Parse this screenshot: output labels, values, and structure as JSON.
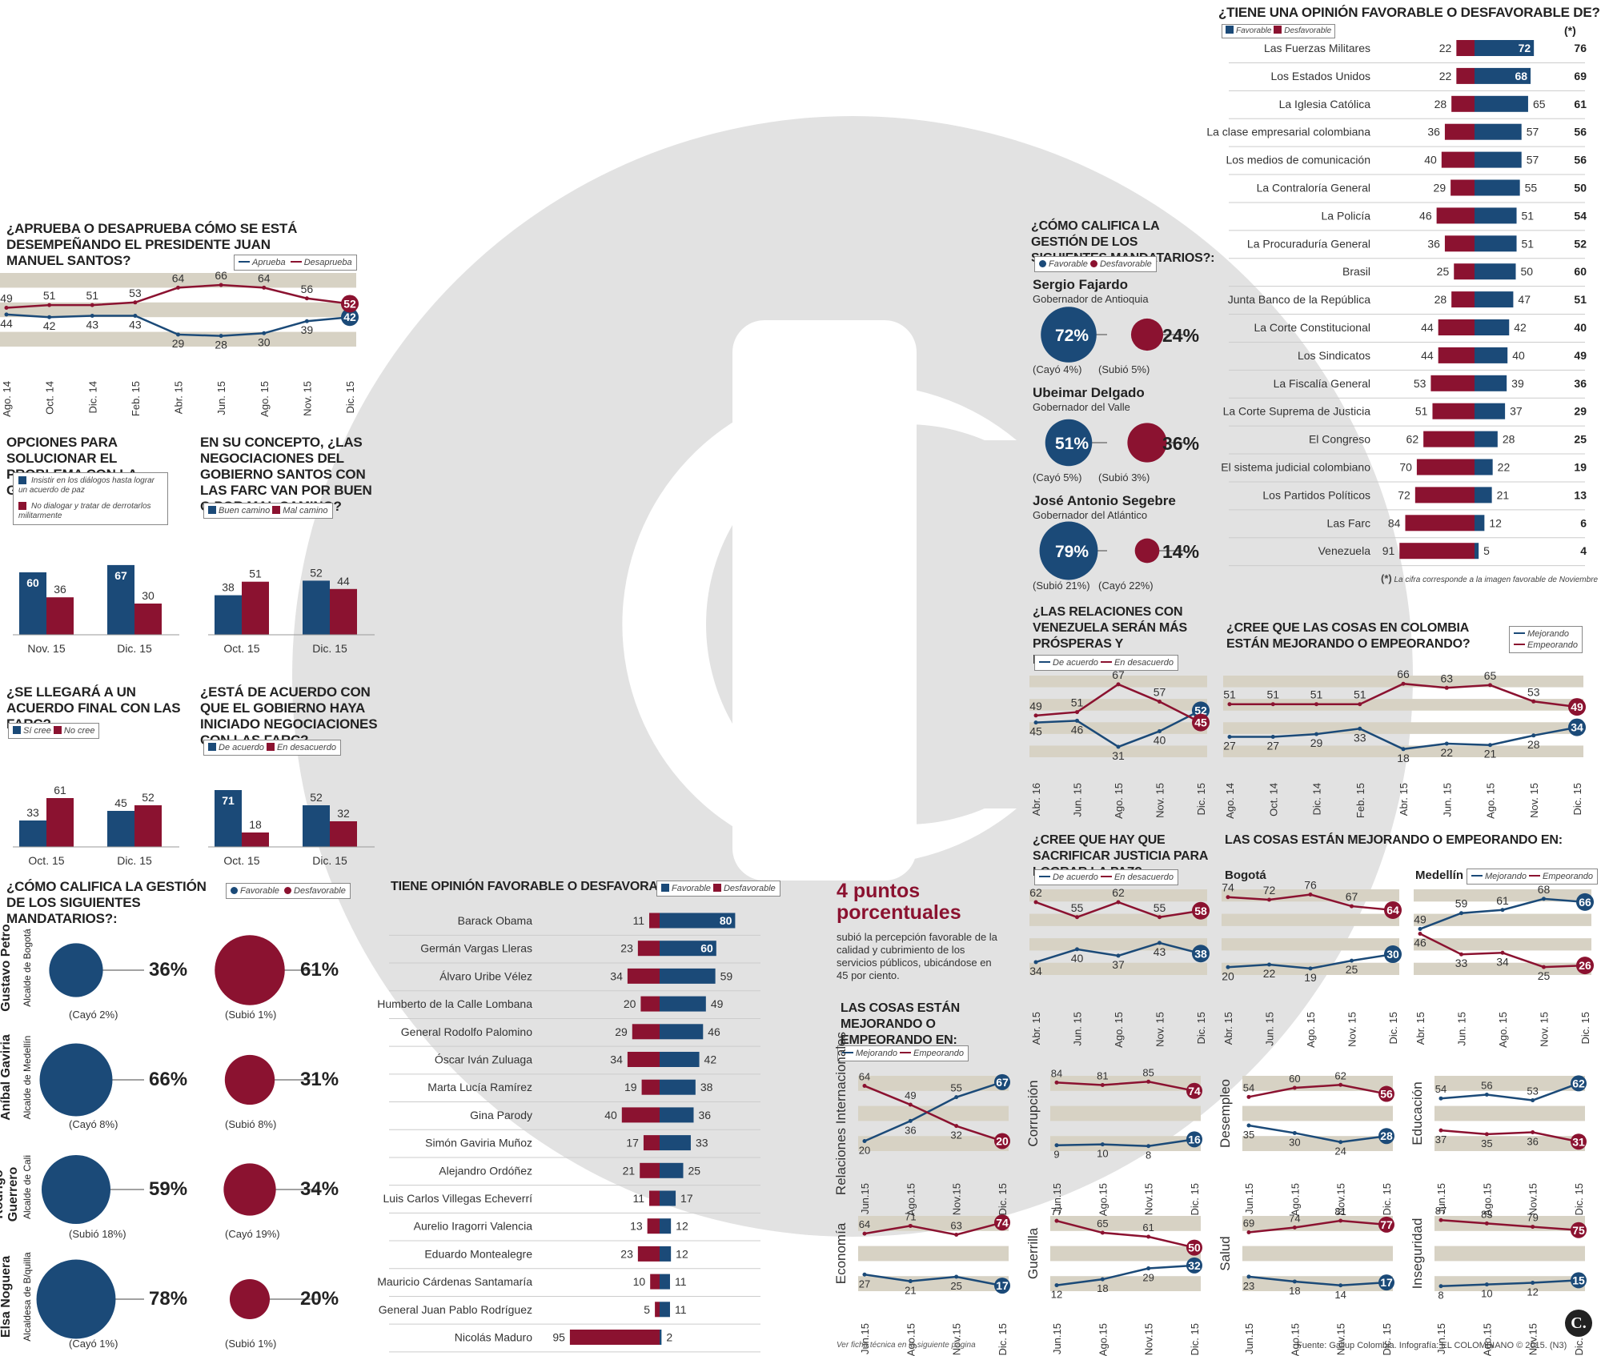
{
  "colors": {
    "blue": "#1b4a78",
    "red": "#8b1230",
    "band": "#d7d2c4",
    "watermark": "#e2e2e2"
  },
  "source": "Fuente: Gallup Colombia. Infografía: EL COLOMBIANO © 2015. (N3)",
  "footnote": "Ver ficha técnica en la siguiente página",
  "logo_letter": "C.",
  "santos": {
    "title": "¿APRUEBA O DESAPRUEBA CÓMO SE ESTÁ DESEMPEÑANDO EL PRESIDENTE JUAN MANUEL SANTOS?",
    "legend": [
      "Aprueba",
      "Desaprueba"
    ]
  },
  "guerrilla": {
    "title": "OPCIONES PARA SOLUCIONAR EL PROBLEMA CON LA GUERRILLA",
    "legend": [
      "Insistir en los diálogos hasta lograr un acuerdo de paz",
      "No dialogar y tratar de derrotarlos militarmente"
    ]
  },
  "negociaciones": {
    "title": "EN SU CONCEPTO, ¿LAS NEGOCIACIONES DEL GOBIERNO SANTOS CON LAS FARC VAN POR BUEN O POR MAL CAMINO?",
    "legend": [
      "Buen camino",
      "Mal camino"
    ]
  },
  "acuerdo": {
    "title": "¿SE LLEGARÁ A UN ACUERDO FINAL CON LAS FARC?",
    "legend": [
      "Sí cree",
      "No cree"
    ]
  },
  "iniciado": {
    "title": "¿ESTÁ DE ACUERDO CON QUE EL GOBIERNO HAYA INICIADO NEGOCIACIONES CON LAS FARC?",
    "legend": [
      "De acuerdo",
      "En desacuerdo"
    ]
  },
  "alcaldes": {
    "title": "¿CÓMO CALIFICA LA GESTIÓN DE LOS SIGUIENTES MANDATARIOS?:",
    "legend": [
      "Favorable",
      "Desfavorable"
    ],
    "people": [
      {
        "name": "Gustavo Petro",
        "role": "Alcalde de Bogotá",
        "fav": "36%",
        "des": "61%",
        "fav_note": "(Cayó 2%)",
        "des_note": "(Subió 1%)"
      },
      {
        "name": "Aníbal Gaviria",
        "role": "Alcalde de Medellín",
        "fav": "66%",
        "des": "31%",
        "fav_note": "(Cayó 8%)",
        "des_note": "(Subió 8%)"
      },
      {
        "name": "Rodrigo Guerrero",
        "role": "Alcalde de Cali",
        "fav": "59%",
        "des": "34%",
        "fav_note": "(Subió 18%)",
        "des_note": "(Cayó 19%)"
      },
      {
        "name": "Elsa Noguera",
        "role": "Alcaldesa de B/quilla",
        "fav": "78%",
        "des": "20%",
        "fav_note": "(Cayó 1%)",
        "des_note": "(Subió 1%)"
      }
    ]
  },
  "personajes": {
    "title": "TIENE OPINIÓN FAVORABLE O DESFAVORABLE DE:",
    "legend": [
      "Favorable",
      "Desfavorable"
    ]
  },
  "puntos": {
    "big": "4 puntos porcentuales",
    "text": "subió la percepción favorable de la calidad y cubrimiento de los servicios públicos, ubicándose en 45 por ciento."
  },
  "mejorando_small": {
    "title": "LAS COSAS ESTÁN MEJORANDO O EMPEORANDO EN:",
    "legend": [
      "Mejorando",
      "Empeorando"
    ]
  },
  "gobernadores": {
    "title": "¿CÓMO CALIFICA LA GESTIÓN DE LOS SIGUIENTES MANDATARIOS?:",
    "legend": [
      "Favorable",
      "Desfavorable"
    ],
    "people": [
      {
        "name": "Sergio Fajardo",
        "role": "Gobernador de Antioquia",
        "fav": "72%",
        "des": "24%",
        "fav_note": "(Cayó 4%)",
        "des_note": "(Subió 5%)"
      },
      {
        "name": "Ubeimar Delgado",
        "role": "Gobernador del Valle",
        "fav": "51%",
        "des": "36%",
        "fav_note": "(Cayó 5%)",
        "des_note": "(Subió 3%)"
      },
      {
        "name": "José Antonio Segebre",
        "role": "Gobernador del Atlántico",
        "fav": "79%",
        "des": "14%",
        "fav_note": "(Subió 21%)",
        "des_note": "(Cayó 22%)"
      }
    ]
  },
  "instituciones": {
    "title": "¿TIENE UNA OPINIÓN FAVORABLE O DESFAVORABLE DE?",
    "legend": [
      "Favorable",
      "Desfavorable"
    ],
    "star": "(*)",
    "star_note": "La cifra corresponde a la imagen favorable de Noviembre"
  },
  "venezuela": {
    "title": "¿LAS RELACIONES CON VENEZUELA SERÁN MÁS PRÓSPERAS Y RESPETUOSAS?",
    "legend": [
      "De acuerdo",
      "En desacuerdo"
    ]
  },
  "colombia": {
    "title": "¿CREE QUE LAS COSAS EN COLOMBIA ESTÁN MEJORANDO O EMPEORANDO?",
    "legend": [
      "Mejorando",
      "Empeorando"
    ]
  },
  "justicia": {
    "title": "¿CREE QUE HAY QUE SACRIFICAR JUSTICIA PARA LOGRAR LA PAZ?",
    "legend": [
      "De acuerdo",
      "En desacuerdo"
    ]
  },
  "ciudades": {
    "title": "LAS COSAS ESTÁN MEJORANDO O EMPEORANDO EN:",
    "legend": [
      "Mejorando",
      "Empeorando"
    ],
    "city1": "Bogotá",
    "city2": "Medellín"
  },
  "chart_data": [
    {
      "id": "santos",
      "type": "line",
      "x": [
        "Ago. 14",
        "Oct. 14",
        "Dic. 14",
        "Feb. 15",
        "Abr. 15",
        "Jun. 15",
        "Ago. 15",
        "Nov. 15",
        "Dic. 15"
      ],
      "series": [
        {
          "name": "Aprueba",
          "values": [
            44,
            42,
            43,
            43,
            29,
            28,
            30,
            39,
            42
          ]
        },
        {
          "name": "Desaprueba",
          "values": [
            49,
            51,
            51,
            53,
            64,
            66,
            64,
            56,
            52
          ]
        }
      ]
    },
    {
      "id": "guerrilla",
      "type": "bar",
      "categories": [
        "Nov. 15",
        "Dic. 15"
      ],
      "series": [
        {
          "values": [
            60,
            67
          ]
        },
        {
          "values": [
            36,
            30
          ]
        }
      ]
    },
    {
      "id": "negociaciones",
      "type": "bar",
      "categories": [
        "Oct. 15",
        "Dic. 15"
      ],
      "series": [
        {
          "name": "Buen camino",
          "values": [
            38,
            52
          ]
        },
        {
          "name": "Mal camino",
          "values": [
            51,
            44
          ]
        }
      ]
    },
    {
      "id": "acuerdo",
      "type": "bar",
      "categories": [
        "Oct. 15",
        "Dic. 15"
      ],
      "series": [
        {
          "name": "Sí cree",
          "values": [
            33,
            45
          ]
        },
        {
          "name": "No cree",
          "values": [
            61,
            52
          ]
        }
      ]
    },
    {
      "id": "iniciado",
      "type": "bar",
      "categories": [
        "Oct. 15",
        "Dic. 15"
      ],
      "series": [
        {
          "name": "De acuerdo",
          "values": [
            71,
            52
          ]
        },
        {
          "name": "En desacuerdo",
          "values": [
            18,
            32
          ]
        }
      ]
    },
    {
      "id": "alcaldes",
      "type": "bubble",
      "series": [
        {
          "name": "Favorable",
          "values": [
            36,
            66,
            59,
            78
          ]
        },
        {
          "name": "Desfavorable",
          "values": [
            61,
            31,
            34,
            20
          ]
        }
      ]
    },
    {
      "id": "gobernadores",
      "type": "bubble",
      "series": [
        {
          "name": "Favorable",
          "values": [
            72,
            51,
            79
          ]
        },
        {
          "name": "Desfavorable",
          "values": [
            24,
            36,
            14
          ]
        }
      ]
    },
    {
      "id": "personajes",
      "type": "bar",
      "categories": [
        "Barack Obama",
        "Germán Vargas Lleras",
        "Álvaro Uribe Vélez",
        "Humberto de la Calle Lombana",
        "General Rodolfo Palomino",
        "Óscar Iván Zuluaga",
        "Marta Lucía Ramírez",
        "Gina Parody",
        "Simón Gaviria Muñoz",
        "Alejandro Ordóñez",
        "Luis Carlos Villegas Echeverrí",
        "Aurelio Iragorri Valencia",
        "Eduardo Montealegre",
        "Mauricio Cárdenas Santamaría",
        "General Juan Pablo Rodríguez",
        "Nicolás Maduro"
      ],
      "series": [
        {
          "name": "Favorable",
          "values": [
            80,
            60,
            59,
            49,
            46,
            42,
            38,
            36,
            33,
            25,
            17,
            12,
            12,
            11,
            11,
            2
          ]
        },
        {
          "name": "Desfavorable",
          "values": [
            11,
            23,
            34,
            20,
            29,
            34,
            19,
            40,
            17,
            21,
            11,
            13,
            23,
            10,
            5,
            95
          ]
        }
      ]
    },
    {
      "id": "instituciones",
      "type": "bar",
      "categories": [
        "Las Fuerzas Militares",
        "Los Estados Unidos",
        "La Iglesia Católica",
        "La clase empresarial colombiana",
        "Los medios de comunicación",
        "La Contraloría General",
        "La Policía",
        "La Procuraduría General",
        "Brasil",
        "Junta Banco de la República",
        "La Corte Constitucional",
        "Los Sindicatos",
        "La Fiscalía General",
        "La Corte Suprema de Justicia",
        "El Congreso",
        "El sistema judicial colombiano",
        "Los Partidos Políticos",
        "Las Farc",
        "Venezuela"
      ],
      "series": [
        {
          "name": "Favorable",
          "values": [
            72,
            68,
            65,
            57,
            57,
            55,
            51,
            51,
            50,
            47,
            42,
            40,
            39,
            37,
            28,
            22,
            21,
            12,
            5
          ]
        },
        {
          "name": "Desfavorable",
          "values": [
            22,
            22,
            28,
            36,
            40,
            29,
            46,
            36,
            25,
            28,
            44,
            44,
            53,
            51,
            62,
            70,
            72,
            84,
            91
          ]
        },
        {
          "name": "(*)",
          "values": [
            76,
            69,
            61,
            56,
            56,
            50,
            54,
            52,
            60,
            51,
            40,
            49,
            36,
            29,
            25,
            19,
            13,
            6,
            4
          ]
        }
      ]
    },
    {
      "id": "venezuela",
      "type": "line",
      "x": [
        "Abr. 16",
        "Jun. 15",
        "Ago. 15",
        "Nov. 15",
        "Dic. 15"
      ],
      "series": [
        {
          "name": "De acuerdo",
          "values": [
            45,
            46,
            31,
            40,
            52
          ]
        },
        {
          "name": "En desacuerdo",
          "values": [
            49,
            51,
            67,
            57,
            45
          ]
        }
      ]
    },
    {
      "id": "colombia",
      "type": "line",
      "x": [
        "Ago. 14",
        "Oct. 14",
        "Dic. 14",
        "Feb. 15",
        "Abr. 15",
        "Jun. 15",
        "Ago. 15",
        "Nov. 15",
        "Dic. 15"
      ],
      "series": [
        {
          "name": "Mejorando",
          "values": [
            27,
            27,
            29,
            33,
            18,
            22,
            21,
            28,
            34
          ]
        },
        {
          "name": "Empeorando",
          "values": [
            51,
            51,
            51,
            51,
            66,
            63,
            65,
            53,
            49
          ]
        }
      ]
    },
    {
      "id": "justicia",
      "type": "line",
      "x": [
        "Abr. 15",
        "Jun. 15",
        "Ago. 15",
        "Nov. 15",
        "Dic. 15"
      ],
      "series": [
        {
          "name": "De acuerdo",
          "values": [
            34,
            40,
            37,
            43,
            38
          ]
        },
        {
          "name": "En desacuerdo",
          "values": [
            62,
            55,
            62,
            55,
            58
          ]
        }
      ]
    },
    {
      "id": "bogota",
      "type": "line",
      "x": [
        "Abr. 15",
        "Jun. 15",
        "Ago. 15",
        "Nov. 15",
        "Dic. 15"
      ],
      "series": [
        {
          "name": "Mejorando",
          "values": [
            20,
            22,
            19,
            25,
            30
          ]
        },
        {
          "name": "Empeorando",
          "values": [
            74,
            72,
            76,
            67,
            64
          ]
        }
      ]
    },
    {
      "id": "medellin",
      "type": "line",
      "x": [
        "Abr. 15",
        "Jun. 15",
        "Ago. 15",
        "Nov. 15",
        "Dic. 15"
      ],
      "series": [
        {
          "name": "Mejorando",
          "values": [
            49,
            59,
            61,
            68,
            66
          ]
        },
        {
          "name": "Empeorando",
          "values": [
            46,
            33,
            34,
            25,
            26
          ]
        }
      ]
    },
    {
      "id": "relaciones",
      "type": "line",
      "label": "Relaciones Internacionales",
      "x": [
        "Jun.15",
        "Ago.15",
        "Nov.15",
        "Dic. 15"
      ],
      "series": [
        {
          "name": "Mejorando",
          "values": [
            20,
            36,
            55,
            67
          ]
        },
        {
          "name": "Empeorando",
          "values": [
            64,
            49,
            32,
            20
          ]
        }
      ]
    },
    {
      "id": "economia",
      "type": "line",
      "label": "Economía",
      "x": [
        "Jun.15",
        "Ago.15",
        "Nov.15",
        "Dic. 15"
      ],
      "series": [
        {
          "name": "Mejorando",
          "values": [
            27,
            21,
            25,
            17
          ]
        },
        {
          "name": "Empeorando",
          "values": [
            64,
            71,
            63,
            74
          ]
        }
      ]
    },
    {
      "id": "corrupcion",
      "type": "line",
      "label": "Corrupción",
      "x": [
        "Jun.15",
        "Ago.15",
        "Nov.15",
        "Dic. 15"
      ],
      "series": [
        {
          "name": "Mejorando",
          "values": [
            9,
            10,
            8,
            16
          ]
        },
        {
          "name": "Empeorando",
          "values": [
            84,
            81,
            85,
            74
          ]
        }
      ]
    },
    {
      "id": "guerrilla_l",
      "type": "line",
      "label": "Guerrilla",
      "x": [
        "Jun.15",
        "Ago.15",
        "Nov.15",
        "Dic. 15"
      ],
      "series": [
        {
          "name": "Mejorando",
          "values": [
            12,
            18,
            29,
            32
          ]
        },
        {
          "name": "Empeorando",
          "values": [
            77,
            65,
            61,
            50
          ]
        }
      ]
    },
    {
      "id": "desempleo",
      "type": "line",
      "label": "Desempleo",
      "x": [
        "Jun.15",
        "Ago.15",
        "Nov.15",
        "Dic. 15"
      ],
      "series": [
        {
          "name": "Mejorando",
          "values": [
            35,
            30,
            24,
            28
          ]
        },
        {
          "name": "Empeorando",
          "values": [
            54,
            60,
            62,
            56
          ]
        }
      ]
    },
    {
      "id": "salud",
      "type": "line",
      "label": "Salud",
      "x": [
        "Jun.15",
        "Ago.15",
        "Nov.15",
        "Dic. 15"
      ],
      "series": [
        {
          "name": "Mejorando",
          "values": [
            23,
            18,
            14,
            17
          ]
        },
        {
          "name": "Empeorando",
          "values": [
            69,
            74,
            81,
            77
          ]
        }
      ]
    },
    {
      "id": "educacion",
      "type": "line",
      "label": "Educación",
      "x": [
        "Jun.15",
        "Ago.15",
        "Nov.15",
        "Dic. 15"
      ],
      "series": [
        {
          "name": "Mejorando",
          "values": [
            54,
            56,
            53,
            62
          ]
        },
        {
          "name": "Empeorando",
          "values": [
            37,
            35,
            36,
            31
          ]
        }
      ]
    },
    {
      "id": "inseguridad",
      "type": "line",
      "label": "Inseguridad",
      "x": [
        "Jun.15",
        "Ago.15",
        "Nov.15",
        "Dic. 15"
      ],
      "series": [
        {
          "name": "Mejorando",
          "values": [
            8,
            10,
            12,
            15
          ]
        },
        {
          "name": "Empeorando",
          "values": [
            87,
            83,
            79,
            75
          ]
        }
      ]
    }
  ]
}
